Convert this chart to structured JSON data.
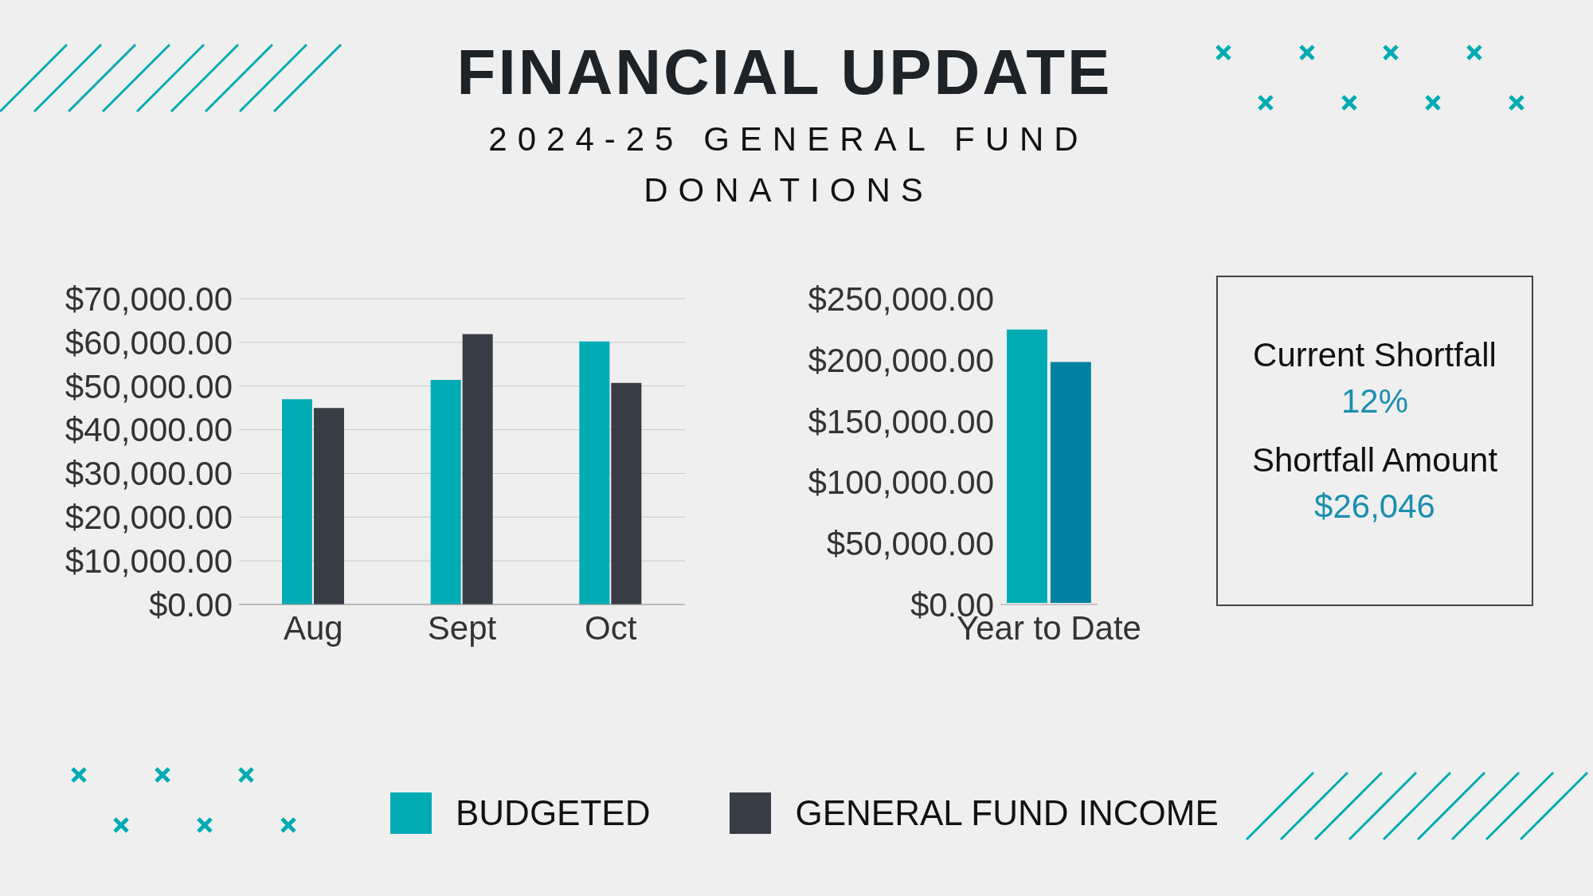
{
  "chart_data": [
    {
      "type": "bar",
      "title": "FINANCIAL UPDATE",
      "subtitle": "2024-25 GENERAL FUND DONATIONS",
      "categories": [
        "Aug",
        "Sept",
        "Oct"
      ],
      "series": [
        {
          "name": "BUDGETED",
          "color": "#00abb3",
          "values": [
            47000,
            51400,
            60200
          ]
        },
        {
          "name": "GENERAL FUND INCOME",
          "color": "#383d45",
          "values": [
            45000,
            61900,
            50700
          ]
        }
      ],
      "ylim": [
        0,
        70000
      ],
      "yticks": [
        {
          "value": 0,
          "label": "$0.00"
        },
        {
          "value": 10000,
          "label": "$10,000.00"
        },
        {
          "value": 20000,
          "label": "$20,000.00"
        },
        {
          "value": 30000,
          "label": "$30,000.00"
        },
        {
          "value": 40000,
          "label": "$40,000.00"
        },
        {
          "value": 50000,
          "label": "$50,000.00"
        },
        {
          "value": 60000,
          "label": "$60,000.00"
        },
        {
          "value": 70000,
          "label": "$70,000.00"
        }
      ],
      "grid": "y",
      "legend": "bottom"
    },
    {
      "type": "bar",
      "categories": [
        "Year to Date"
      ],
      "series": [
        {
          "color": "#00abb3",
          "values": [
            226000
          ]
        },
        {
          "color": "#0083a0",
          "values": [
            199500
          ]
        }
      ],
      "ylim": [
        0,
        250000
      ],
      "yticks": [
        {
          "value": 0,
          "label": "$0.00"
        },
        {
          "value": 50000,
          "label": "$50,000.00"
        },
        {
          "value": 100000,
          "label": "$100,000.00"
        },
        {
          "value": 150000,
          "label": "$150,000.00"
        },
        {
          "value": 200000,
          "label": "$200,000.00"
        },
        {
          "value": 250000,
          "label": "$250,000.00"
        }
      ],
      "grid": false
    },
    {
      "type": "other",
      "annotations": [
        "Current Shortfall",
        "12%",
        "Shortfall Amount",
        "$26,046"
      ]
    }
  ]
}
